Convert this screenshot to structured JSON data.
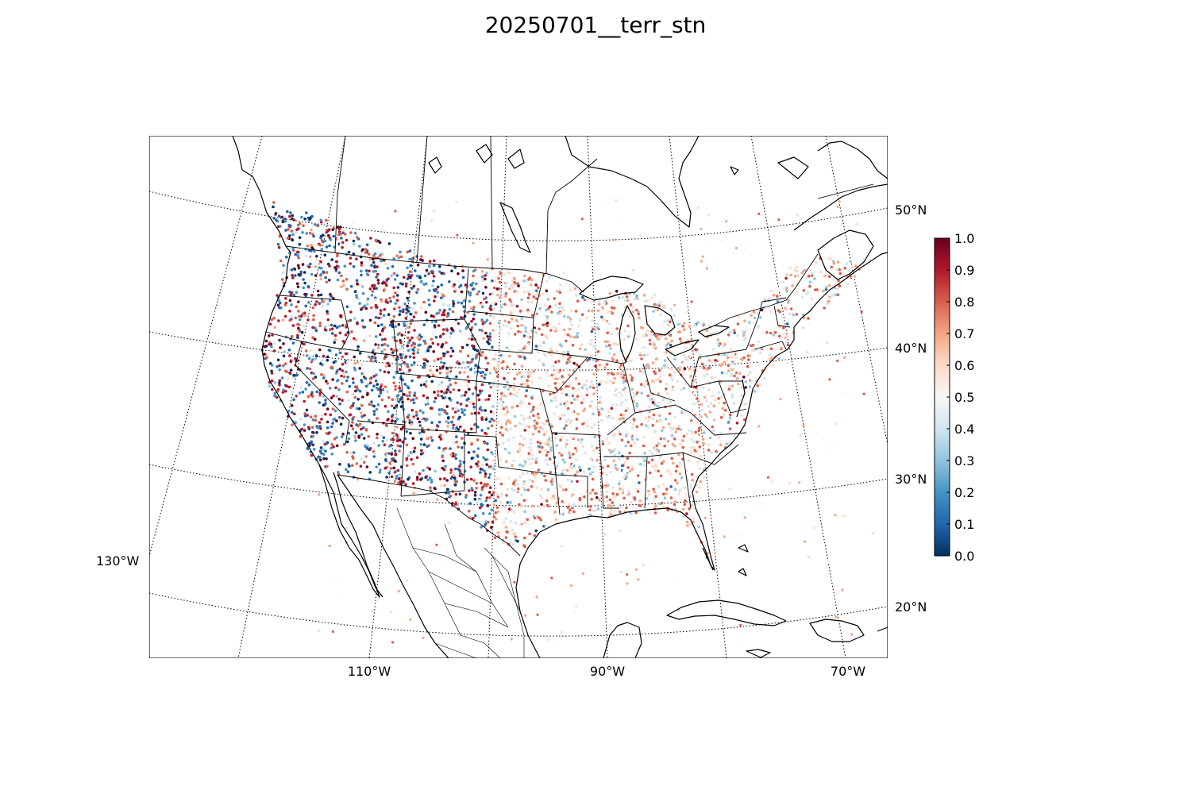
{
  "title": "20250701__terr_stn",
  "map": {
    "projection": "lambert-conformal",
    "coastlines": true,
    "country_borders": true,
    "state_borders": true,
    "point_style": "small dots, diverging red-blue colormap",
    "lon_labels": [
      "130°W",
      "110°W",
      "90°W",
      "70°W"
    ],
    "lat_labels": [
      "50°N",
      "40°N",
      "30°N",
      "20°N"
    ]
  },
  "colorbar": {
    "colormap": "RdBu_r",
    "low_color": "#053061",
    "mid_color": "#f7f7f7",
    "high_color": "#67001f",
    "range": [
      0.0,
      1.0
    ],
    "ticks": [
      "1.0",
      "0.9",
      "0.8",
      "0.7",
      "0.6",
      "0.5",
      "0.4",
      "0.3",
      "0.2",
      "0.1",
      "0.0"
    ]
  }
}
